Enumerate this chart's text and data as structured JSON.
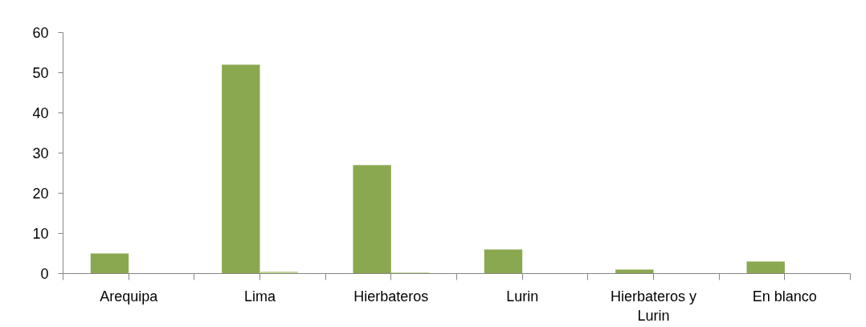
{
  "chart_data": {
    "type": "bar",
    "categories": [
      "Arequipa",
      "Lima",
      "Hierbateros",
      "Lurin",
      "Hierbateros y Lurin",
      "En blanco"
    ],
    "series": [
      {
        "color": "#8aa84f",
        "values": [
          5,
          52,
          27,
          6,
          1,
          3
        ]
      },
      {
        "color": "#c3d69b",
        "values": [
          0,
          0.5,
          0.3,
          0,
          0,
          0
        ]
      }
    ],
    "ylim": [
      0,
      60
    ],
    "yticks": [
      0,
      10,
      20,
      30,
      40,
      50,
      60
    ],
    "grid": false
  }
}
